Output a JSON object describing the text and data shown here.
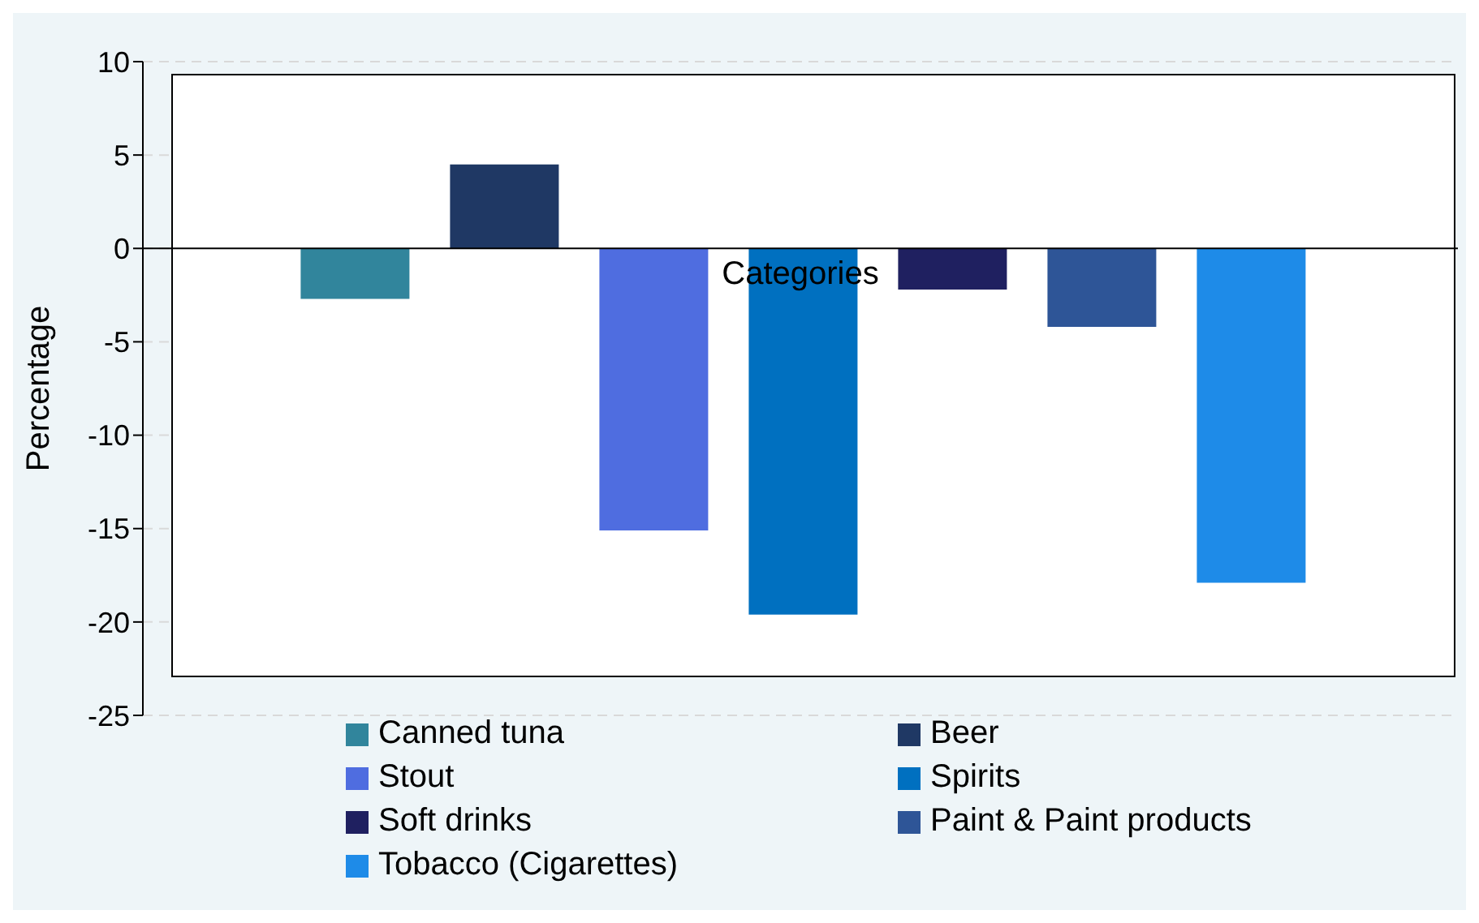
{
  "chart_data": {
    "type": "bar",
    "xlabel": "Categories",
    "ylabel": "Percentage",
    "categories": [
      null
    ],
    "series": [
      {
        "name": "Canned tuna",
        "color": "#31859c",
        "values": [
          -2.7
        ]
      },
      {
        "name": "Beer",
        "color": "#1f3864",
        "values": [
          4.5
        ]
      },
      {
        "name": "Stout",
        "color": "#4f6de0",
        "values": [
          -15.1
        ]
      },
      {
        "name": "Spirits",
        "color": "#0070c0",
        "values": [
          -19.6
        ]
      },
      {
        "name": "Soft drinks",
        "color": "#1f2060",
        "values": [
          -2.2
        ]
      },
      {
        "name": "Paint & Paint products",
        "color": "#2e5597",
        "values": [
          -4.2
        ]
      },
      {
        "name": "Tobacco (Cigarettes)",
        "color": "#1e8be8",
        "values": [
          -17.9
        ]
      }
    ],
    "ylim": [
      -25,
      10
    ],
    "yticks": [
      -25,
      -20,
      -15,
      -10,
      -5,
      0,
      5,
      10
    ],
    "grid": "y",
    "legend": "bottom"
  }
}
